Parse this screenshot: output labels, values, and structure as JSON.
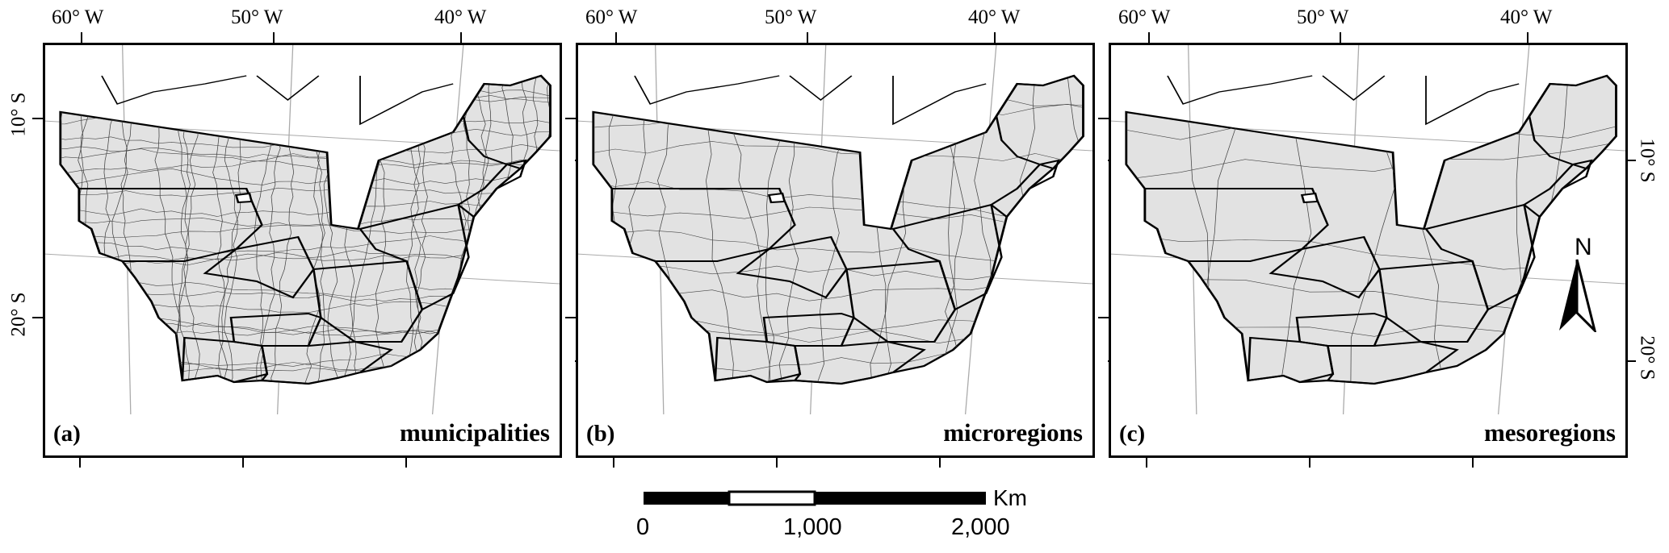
{
  "panels": [
    {
      "tag": "(a)",
      "name": "municipalities",
      "density": "fine"
    },
    {
      "tag": "(b)",
      "name": "microregions",
      "density": "medium"
    },
    {
      "tag": "(c)",
      "name": "mesoregions",
      "density": "coarse"
    }
  ],
  "graticule": {
    "longitudes": [
      "60° W",
      "50° W",
      "40° W"
    ],
    "latitudes": [
      "10° S",
      "20° S"
    ]
  },
  "scale_bar": {
    "labels": [
      "0",
      "1,000",
      "2,000"
    ],
    "unit": "Km"
  },
  "north_arrow": {
    "label": "N"
  },
  "colors": {
    "region_fill": "#e2e2e2",
    "boundary": "#000000",
    "graticule": "#aaaaaa"
  }
}
